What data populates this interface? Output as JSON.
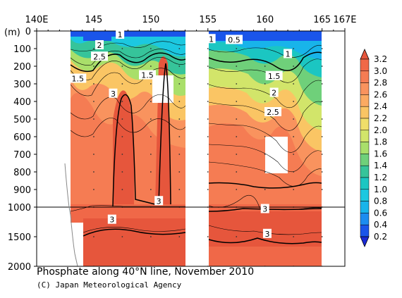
{
  "chart_data": {
    "type": "heatmap",
    "title": "Phosphate along 40°N line, November 2010",
    "credit": "(C) Japan Meteorological Agency",
    "x_axis": {
      "ticks": [
        {
          "value": 140,
          "label": "140E"
        },
        {
          "value": 145,
          "label": "145"
        },
        {
          "value": 150,
          "label": "150"
        },
        {
          "value": 155,
          "label": "155"
        },
        {
          "value": 160,
          "label": "160"
        },
        {
          "value": 165,
          "label": "165"
        },
        {
          "value": 167,
          "label": "167E"
        }
      ],
      "range": [
        140,
        167
      ]
    },
    "y_axis": {
      "unit_label": "(m)",
      "ticks": [
        0,
        100,
        200,
        300,
        400,
        500,
        600,
        700,
        800,
        900,
        1000,
        1500,
        2000
      ],
      "range": [
        0,
        2000
      ],
      "scale": "upper 0-1000 m linear, lower 1000-2000 m compressed"
    },
    "colorbar": {
      "ticks": [
        "3.2",
        "3.0",
        "2.8",
        "2.6",
        "2.4",
        "2.2",
        "2.0",
        "1.8",
        "1.6",
        "1.4",
        "1.2",
        "1.0",
        "0.8",
        "0.6",
        "0.4",
        "0.2"
      ],
      "colors": [
        "#e6563c",
        "#f06848",
        "#f57c53",
        "#f9935e",
        "#fbaa62",
        "#fac564",
        "#f0de6a",
        "#d2e56a",
        "#a9df6a",
        "#6fd07a",
        "#36c49a",
        "#1bc6c2",
        "#1cc8e0",
        "#18b4ea",
        "#1c8cf0",
        "#1a55ea"
      ],
      "min": 0.2,
      "max": 3.2,
      "extend": "both"
    },
    "contour_labels": [
      {
        "lon": 147.3,
        "depth": 20,
        "text": "1"
      },
      {
        "lon": 157.3,
        "depth": 50,
        "text": "0.5"
      },
      {
        "lon": 155.3,
        "depth": 45,
        "text": "1"
      },
      {
        "lon": 162.0,
        "depth": 130,
        "text": "1"
      },
      {
        "lon": 145.5,
        "depth": 80,
        "text": "2"
      },
      {
        "lon": 145.5,
        "depth": 145,
        "text": "2.5"
      },
      {
        "lon": 143.6,
        "depth": 270,
        "text": "1.5"
      },
      {
        "lon": 149.7,
        "depth": 250,
        "text": "1.5"
      },
      {
        "lon": 160.8,
        "depth": 255,
        "text": "1.5"
      },
      {
        "lon": 160.8,
        "depth": 350,
        "text": "2"
      },
      {
        "lon": 160.7,
        "depth": 460,
        "text": "2.5"
      },
      {
        "lon": 146.7,
        "depth": 355,
        "text": "3"
      },
      {
        "lon": 150.7,
        "depth": 965,
        "text": "3"
      },
      {
        "lon": 160.0,
        "depth": 1030,
        "text": "3"
      },
      {
        "lon": 146.6,
        "depth": 1210,
        "text": "3"
      },
      {
        "lon": 160.2,
        "depth": 1450,
        "text": "3"
      }
    ],
    "data_gaps": [
      {
        "lon": [
          153.6,
          155.9
        ],
        "depth": [
          0,
          2000
        ],
        "note": "no observation band"
      },
      {
        "lon": [
          150.0,
          151.7
        ],
        "depth": [
          250,
          400
        ]
      },
      {
        "lon": [
          159.8,
          161.8
        ],
        "depth": [
          600,
          810
        ]
      }
    ],
    "section_end_lon": 165.0,
    "grid": "dotted",
    "legend_position": "right"
  }
}
